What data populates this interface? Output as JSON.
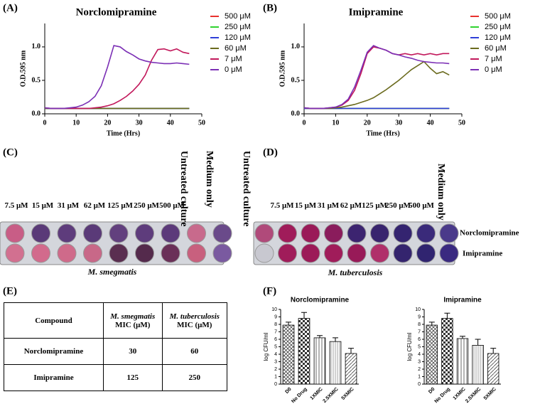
{
  "panel_labels": [
    "(A)",
    "(B)",
    "(C)",
    "(D)",
    "(E)",
    "(F)"
  ],
  "chart_data": [
    {
      "type": "line",
      "title": "Norclomipramine",
      "x_label": "Time (Hrs)",
      "y_label": "O.D.595 nm",
      "x": [
        0,
        2,
        4,
        6,
        8,
        10,
        12,
        14,
        16,
        18,
        20,
        22,
        24,
        26,
        28,
        30,
        32,
        34,
        36,
        38,
        40,
        42,
        44,
        46
      ],
      "xlim": [
        0,
        50
      ],
      "xticks": [
        0,
        10,
        20,
        30,
        40,
        50
      ],
      "ylim": [
        0,
        1.35
      ],
      "yticks": [
        {
          "value": 0,
          "label": "0.0"
        },
        {
          "value": 0.5,
          "label": "0.5"
        },
        {
          "value": 1,
          "label": "1.0"
        }
      ],
      "legend": "right",
      "series": [
        {
          "name": "500 μM",
          "color": "#e8322e",
          "values": [
            0.08,
            0.08,
            0.08,
            0.08,
            0.08,
            0.08,
            0.08,
            0.08,
            0.08,
            0.08,
            0.08,
            0.08,
            0.08,
            0.08,
            0.08,
            0.08,
            0.08,
            0.08,
            0.08,
            0.08,
            0.08,
            0.08,
            0.08,
            0.08
          ]
        },
        {
          "name": "250 μM",
          "color": "#2fd22f",
          "values": [
            0.08,
            0.08,
            0.08,
            0.08,
            0.08,
            0.08,
            0.08,
            0.08,
            0.08,
            0.08,
            0.08,
            0.08,
            0.08,
            0.08,
            0.08,
            0.08,
            0.08,
            0.08,
            0.08,
            0.08,
            0.08,
            0.08,
            0.08,
            0.08
          ]
        },
        {
          "name": "120 μM",
          "color": "#2f3fd8",
          "values": [
            0.08,
            0.08,
            0.08,
            0.08,
            0.08,
            0.08,
            0.08,
            0.08,
            0.08,
            0.08,
            0.08,
            0.08,
            0.08,
            0.08,
            0.08,
            0.08,
            0.08,
            0.08,
            0.08,
            0.08,
            0.08,
            0.08,
            0.08,
            0.08
          ]
        },
        {
          "name": "60 μM",
          "color": "#6b6b1e",
          "values": [
            0.08,
            0.08,
            0.08,
            0.08,
            0.08,
            0.08,
            0.08,
            0.08,
            0.08,
            0.08,
            0.08,
            0.08,
            0.08,
            0.08,
            0.08,
            0.08,
            0.08,
            0.08,
            0.08,
            0.08,
            0.08,
            0.08,
            0.08,
            0.08
          ]
        },
        {
          "name": "7 μM",
          "color": "#c2185b",
          "values": [
            0.09,
            0.08,
            0.08,
            0.08,
            0.08,
            0.08,
            0.08,
            0.08,
            0.09,
            0.1,
            0.12,
            0.15,
            0.2,
            0.26,
            0.34,
            0.44,
            0.58,
            0.8,
            0.96,
            0.97,
            0.94,
            0.97,
            0.92,
            0.9
          ]
        },
        {
          "name": "0 μM",
          "color": "#7b2fb5",
          "values": [
            0.09,
            0.08,
            0.08,
            0.08,
            0.09,
            0.1,
            0.13,
            0.18,
            0.26,
            0.42,
            0.7,
            1.02,
            1.0,
            0.93,
            0.88,
            0.82,
            0.79,
            0.77,
            0.76,
            0.75,
            0.75,
            0.76,
            0.75,
            0.74
          ]
        }
      ]
    },
    {
      "type": "line",
      "title": "Imipramine",
      "x_label": "Time (Hrs)",
      "y_label": "O.D.595 nm",
      "x": [
        0,
        2,
        4,
        6,
        8,
        10,
        12,
        14,
        16,
        18,
        20,
        22,
        24,
        26,
        28,
        30,
        32,
        34,
        36,
        38,
        40,
        42,
        44,
        46
      ],
      "xlim": [
        0,
        50
      ],
      "xticks": [
        0,
        10,
        20,
        30,
        40,
        50
      ],
      "ylim": [
        0,
        1.35
      ],
      "yticks": [
        {
          "value": 0,
          "label": "0.0"
        },
        {
          "value": 0.5,
          "label": "0.5"
        },
        {
          "value": 1,
          "label": "1.0"
        }
      ],
      "legend": "right",
      "series": [
        {
          "name": "500 μM",
          "color": "#e8322e",
          "values": [
            0.08,
            0.08,
            0.08,
            0.08,
            0.08,
            0.08,
            0.08,
            0.08,
            0.08,
            0.08,
            0.08,
            0.08,
            0.08,
            0.08,
            0.08,
            0.08,
            0.08,
            0.08,
            0.08,
            0.08,
            0.08,
            0.08,
            0.08,
            0.08
          ]
        },
        {
          "name": "250 μM",
          "color": "#2fd22f",
          "values": [
            0.08,
            0.08,
            0.08,
            0.08,
            0.08,
            0.08,
            0.08,
            0.08,
            0.08,
            0.08,
            0.08,
            0.08,
            0.08,
            0.08,
            0.08,
            0.08,
            0.08,
            0.08,
            0.08,
            0.08,
            0.08,
            0.08,
            0.08,
            0.08
          ]
        },
        {
          "name": "120 μM",
          "color": "#2f3fd8",
          "values": [
            0.08,
            0.08,
            0.08,
            0.08,
            0.08,
            0.08,
            0.08,
            0.08,
            0.08,
            0.08,
            0.08,
            0.08,
            0.08,
            0.08,
            0.08,
            0.08,
            0.08,
            0.08,
            0.08,
            0.08,
            0.08,
            0.08,
            0.08,
            0.08
          ]
        },
        {
          "name": "60 μM",
          "color": "#6b6b1e",
          "values": [
            0.09,
            0.08,
            0.08,
            0.08,
            0.08,
            0.09,
            0.1,
            0.12,
            0.14,
            0.17,
            0.2,
            0.24,
            0.3,
            0.36,
            0.43,
            0.5,
            0.58,
            0.66,
            0.72,
            0.78,
            0.68,
            0.6,
            0.63,
            0.58
          ]
        },
        {
          "name": "7 μM",
          "color": "#c2185b",
          "values": [
            0.09,
            0.08,
            0.08,
            0.08,
            0.09,
            0.1,
            0.13,
            0.2,
            0.35,
            0.6,
            0.9,
            1.0,
            0.98,
            0.95,
            0.9,
            0.88,
            0.9,
            0.88,
            0.9,
            0.88,
            0.9,
            0.88,
            0.9,
            0.9
          ]
        },
        {
          "name": "0 μM",
          "color": "#7b2fb5",
          "values": [
            0.09,
            0.08,
            0.08,
            0.08,
            0.09,
            0.1,
            0.14,
            0.22,
            0.4,
            0.65,
            0.92,
            1.02,
            0.98,
            0.95,
            0.9,
            0.88,
            0.85,
            0.83,
            0.8,
            0.78,
            0.77,
            0.76,
            0.76,
            0.75
          ]
        }
      ]
    },
    {
      "type": "bar",
      "title": "Norclomipramine",
      "y_label": "log CFU/ml",
      "categories": [
        "D0",
        "No Drug",
        "1XMIC",
        "2.5XMIC",
        "5XMIC"
      ],
      "values": [
        7.9,
        8.8,
        6.2,
        5.7,
        4.1
      ],
      "errors": [
        0.4,
        0.8,
        0.3,
        0.5,
        0.7
      ],
      "ylim": [
        0,
        10
      ],
      "yticks": [
        0,
        1,
        2,
        3,
        4,
        5,
        6,
        7,
        8,
        9,
        10
      ]
    },
    {
      "type": "bar",
      "title": "Imipramine",
      "y_label": "log CFU/ml",
      "categories": [
        "D0",
        "No Drug",
        "1XMIC",
        "2.5XMIC",
        "5XMIC"
      ],
      "values": [
        7.9,
        8.8,
        6.1,
        5.2,
        4.1
      ],
      "errors": [
        0.4,
        0.7,
        0.3,
        0.8,
        0.7
      ],
      "ylim": [
        0,
        10
      ],
      "yticks": [
        0,
        1,
        2,
        3,
        4,
        5,
        6,
        7,
        8,
        9,
        10
      ]
    }
  ],
  "plates": [
    {
      "caption": "M. smegmatis",
      "column_labels": [
        "7.5 μM",
        "15 μM",
        "31 μM",
        "62 μM",
        "125 μM",
        "250 μM",
        "500 μM",
        "Untreated culture",
        "Medium only"
      ]
    },
    {
      "caption": "M. tuberculosis",
      "column_labels": [
        "Untreated culture",
        "7.5 μM",
        "15 μM",
        "31 μM",
        "62 μM",
        "125 μM",
        "250 μM",
        "500 μM",
        "Medium only"
      ],
      "row_labels": [
        "Norclomipramine",
        "Imipramine"
      ]
    }
  ],
  "table": {
    "header": [
      "Compound",
      {
        "organism": "M. smegmatis",
        "unit": "MIC (μM)"
      },
      {
        "organism": "M. tuberculosis",
        "unit": "MIC (μM)"
      }
    ],
    "rows": [
      [
        "Norclomipramine",
        30,
        60
      ],
      [
        "Imipramine",
        125,
        250
      ]
    ]
  }
}
